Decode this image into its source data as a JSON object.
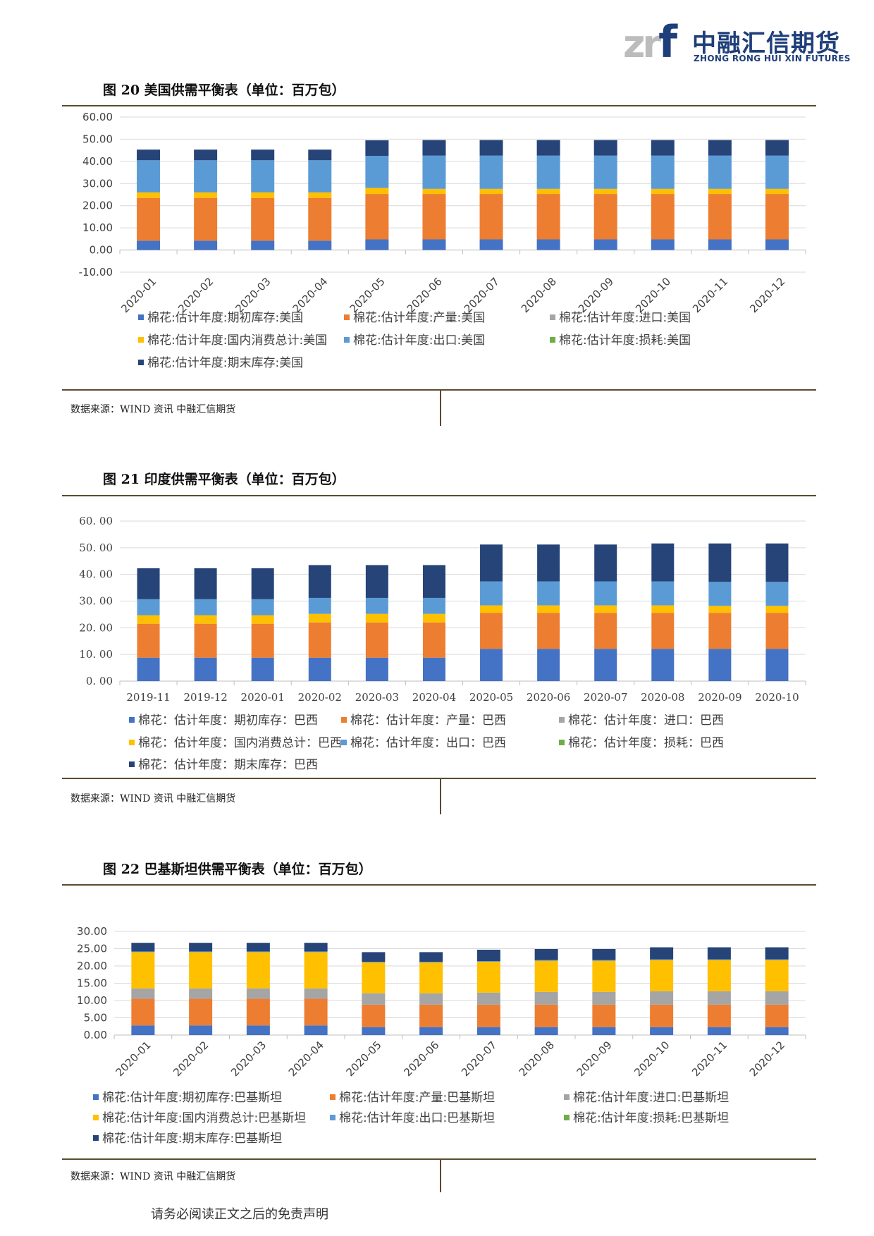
{
  "header": {
    "logo_mark": "zr",
    "logo_mark_f": "f",
    "logo_cn": "中融汇信期货",
    "logo_en": "ZHONG RONG HUI XIN FUTURES"
  },
  "footer": {
    "disclaimer": "请务必阅读正文之后的免责声明"
  },
  "colors": {
    "opening_stock": "#4472c4",
    "production": "#ed7d31",
    "import": "#a5a5a5",
    "consumption": "#ffc000",
    "export": "#5b9bd5",
    "loss": "#70ad47",
    "ending_stock": "#264478",
    "rule": "#5b4a2e",
    "grid": "#d9d9d9"
  },
  "chart_data": [
    {
      "type": "bar",
      "stacked": true,
      "figure_title": "图 20 美国供需平衡表（单位：百万包）",
      "source": "数据来源：WIND 资讯 中融汇信期货",
      "ylim": [
        -10,
        60
      ],
      "yticks": [
        "60.00",
        "50.00",
        "40.00",
        "30.00",
        "20.00",
        "10.00",
        "0.00",
        "-10.00"
      ],
      "ytick_values": [
        60,
        50,
        40,
        30,
        20,
        10,
        0,
        -10
      ],
      "x_tick_rotated": true,
      "grid": true,
      "legend_position": "bottom",
      "categories": [
        "2020-01",
        "2020-02",
        "2020-03",
        "2020-04",
        "2020-05",
        "2020-06",
        "2020-07",
        "2020-08",
        "2020-09",
        "2020-10",
        "2020-11",
        "2020-12"
      ],
      "series": [
        {
          "name": "棉花:估计年度:期初库存:美国",
          "color_key": "opening_stock",
          "values": [
            4.2,
            4.2,
            4.2,
            4.2,
            4.8,
            4.8,
            4.8,
            4.8,
            4.8,
            4.8,
            4.8,
            4.8
          ]
        },
        {
          "name": "棉花:估计年度:产量:美国",
          "color_key": "production",
          "values": [
            19.3,
            19.3,
            19.3,
            19.3,
            20.5,
            20.5,
            20.5,
            20.5,
            20.5,
            20.5,
            20.5,
            20.5
          ]
        },
        {
          "name": "棉花:估计年度:进口:美国",
          "color_key": "import",
          "values": [
            0,
            0,
            0,
            0,
            0,
            0,
            0,
            0,
            0,
            0,
            0,
            0
          ]
        },
        {
          "name": "棉花:估计年度:国内消费总计:美国",
          "color_key": "consumption",
          "values": [
            2.5,
            2.5,
            2.5,
            2.5,
            2.7,
            2.3,
            2.3,
            2.3,
            2.3,
            2.3,
            2.3,
            2.3
          ]
        },
        {
          "name": "棉花:估计年度:出口:美国",
          "color_key": "export",
          "values": [
            14.5,
            14.5,
            14.5,
            14.5,
            14.5,
            15.0,
            15.0,
            15.0,
            15.0,
            15.0,
            15.0,
            15.0
          ]
        },
        {
          "name": "棉花:估计年度:损耗:美国",
          "color_key": "loss",
          "values": [
            0,
            0,
            0,
            0,
            0,
            0,
            0,
            0,
            0,
            0,
            0,
            0
          ]
        },
        {
          "name": "棉花:估计年度:期末库存:美国",
          "color_key": "ending_stock",
          "values": [
            4.8,
            4.8,
            4.8,
            4.8,
            7.0,
            7.0,
            7.0,
            7.0,
            7.0,
            7.0,
            7.0,
            7.0
          ]
        }
      ]
    },
    {
      "type": "bar",
      "stacked": true,
      "figure_title": "图 21 印度供需平衡表（单位：百万包）",
      "source": "数据来源：WIND 资讯 中融汇信期货",
      "ylim": [
        0,
        60
      ],
      "yticks": [
        "60. 00",
        "50. 00",
        "40. 00",
        "30. 00",
        "20. 00",
        "10. 00",
        "0. 00"
      ],
      "ytick_values": [
        60,
        50,
        40,
        30,
        20,
        10,
        0
      ],
      "x_tick_rotated": false,
      "grid": true,
      "legend_position": "bottom",
      "categories": [
        "2019-11",
        "2019-12",
        "2020-01",
        "2020-02",
        "2020-03",
        "2020-04",
        "2020-05",
        "2020-06",
        "2020-07",
        "2020-08",
        "2020-09",
        "2020-10"
      ],
      "series": [
        {
          "name": "棉花：估计年度：期初库存：巴西",
          "color_key": "opening_stock",
          "values": [
            8.8,
            8.8,
            8.8,
            8.8,
            8.8,
            8.8,
            12.1,
            12.1,
            12.1,
            12.1,
            12.1,
            12.1
          ]
        },
        {
          "name": "棉花：估计年度：产量：巴西",
          "color_key": "production",
          "values": [
            12.7,
            12.7,
            12.7,
            13.2,
            13.2,
            13.2,
            13.5,
            13.5,
            13.5,
            13.5,
            13.5,
            13.5
          ]
        },
        {
          "name": "棉花：估计年度：进口：巴西",
          "color_key": "import",
          "values": [
            0,
            0,
            0,
            0,
            0,
            0,
            0,
            0,
            0,
            0,
            0,
            0
          ]
        },
        {
          "name": "棉花：估计年度：国内消费总计：巴西",
          "color_key": "consumption",
          "values": [
            3.2,
            3.2,
            3.2,
            3.2,
            3.2,
            3.2,
            2.8,
            2.8,
            2.8,
            2.8,
            2.6,
            2.6
          ]
        },
        {
          "name": "棉花：估计年度：出口：巴西",
          "color_key": "export",
          "values": [
            6.0,
            6.0,
            6.0,
            6.0,
            6.0,
            6.0,
            9.0,
            9.0,
            9.0,
            9.0,
            9.0,
            9.0
          ]
        },
        {
          "name": "棉花：估计年度：损耗：巴西",
          "color_key": "loss",
          "values": [
            0,
            0,
            0,
            0,
            0,
            0,
            0,
            0,
            0,
            0,
            0,
            0
          ]
        },
        {
          "name": "棉花：估计年度：期末库存：巴西",
          "color_key": "ending_stock",
          "values": [
            11.6,
            11.6,
            11.6,
            12.3,
            12.3,
            12.3,
            13.8,
            13.8,
            13.8,
            14.2,
            14.4,
            14.4
          ]
        }
      ]
    },
    {
      "type": "bar",
      "stacked": true,
      "figure_title": "图 22 巴基斯坦供需平衡表（单位：百万包）",
      "source": "数据来源：WIND 资讯 中融汇信期货",
      "ylim": [
        0,
        30
      ],
      "yticks": [
        "30.00",
        "25.00",
        "20.00",
        "15.00",
        "10.00",
        "5.00",
        "0.00"
      ],
      "ytick_values": [
        30,
        25,
        20,
        15,
        10,
        5,
        0
      ],
      "x_tick_rotated": true,
      "grid": true,
      "legend_position": "bottom",
      "categories": [
        "2020-01",
        "2020-02",
        "2020-03",
        "2020-04",
        "2020-05",
        "2020-06",
        "2020-07",
        "2020-08",
        "2020-09",
        "2020-10",
        "2020-11",
        "2020-12"
      ],
      "series": [
        {
          "name": "棉花:估计年度:期初库存:巴基斯坦",
          "color_key": "opening_stock",
          "values": [
            2.8,
            2.8,
            2.8,
            2.8,
            2.3,
            2.3,
            2.3,
            2.3,
            2.3,
            2.3,
            2.3,
            2.3
          ]
        },
        {
          "name": "棉花:估计年度:产量:巴基斯坦",
          "color_key": "production",
          "values": [
            7.7,
            7.7,
            7.7,
            7.7,
            6.5,
            6.5,
            6.5,
            6.5,
            6.5,
            6.5,
            6.5,
            6.5
          ]
        },
        {
          "name": "棉花:估计年度:进口:巴基斯坦",
          "color_key": "import",
          "values": [
            3.0,
            3.0,
            3.0,
            3.0,
            3.3,
            3.3,
            3.5,
            3.7,
            3.7,
            3.9,
            3.9,
            3.9
          ]
        },
        {
          "name": "棉花:估计年度:国内消费总计:巴基斯坦",
          "color_key": "consumption",
          "values": [
            10.5,
            10.5,
            10.5,
            10.5,
            8.9,
            8.9,
            8.9,
            9.0,
            9.0,
            9.0,
            9.0,
            9.0
          ]
        },
        {
          "name": "棉花:估计年度:出口:巴基斯坦",
          "color_key": "export",
          "values": [
            0.2,
            0.2,
            0.2,
            0.2,
            0.2,
            0.2,
            0.2,
            0.2,
            0.2,
            0.2,
            0.2,
            0.2
          ]
        },
        {
          "name": "棉花:估计年度:损耗:巴基斯坦",
          "color_key": "loss",
          "values": [
            0,
            0,
            0,
            0,
            0,
            0,
            0,
            0,
            0,
            0,
            0,
            0
          ]
        },
        {
          "name": "棉花:估计年度:期末库存:巴基斯坦",
          "color_key": "ending_stock",
          "values": [
            2.5,
            2.5,
            2.5,
            2.5,
            2.8,
            2.8,
            3.3,
            3.2,
            3.2,
            3.5,
            3.5,
            3.5
          ]
        }
      ]
    }
  ]
}
